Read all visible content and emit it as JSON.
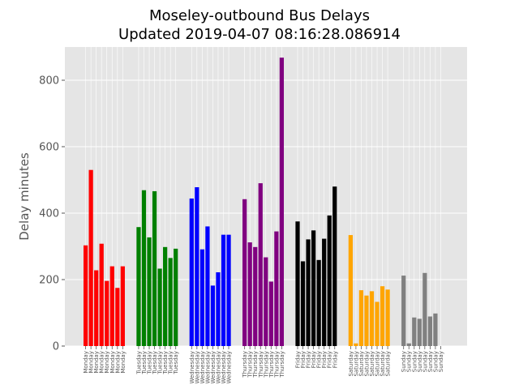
{
  "chart_data": {
    "type": "bar",
    "title_lines": [
      "Moseley-outbound Bus Delays",
      "Updated 2019-04-07 08:16:28.086914"
    ],
    "xlabel": "",
    "ylabel": "Delay minutes",
    "ylim": [
      0,
      900
    ],
    "yticks": [
      0,
      200,
      400,
      600,
      800
    ],
    "grid": true,
    "legend": "none",
    "background": "#e5e5e5",
    "groups": [
      {
        "day": "Monday",
        "color": "#ff0000",
        "values": [
          303,
          530,
          228,
          308,
          196,
          240,
          175,
          240
        ],
        "slots": 10
      },
      {
        "day": "Tuesday",
        "color": "#008000",
        "values": [
          358,
          469,
          327,
          466,
          233,
          298,
          265,
          293
        ],
        "slots": 10
      },
      {
        "day": "Wednesday",
        "color": "#0000ff",
        "values": [
          444,
          478,
          291,
          360,
          182,
          222,
          335,
          335
        ],
        "slots": 10
      },
      {
        "day": "Thursday",
        "color": "#800080",
        "values": [
          442,
          312,
          298,
          490,
          267,
          194,
          345,
          868
        ],
        "slots": 10
      },
      {
        "day": "Friday",
        "color": "#000000",
        "values": [
          375,
          255,
          321,
          348,
          259,
          323,
          393,
          480
        ],
        "slots": 10
      },
      {
        "day": "Saturday",
        "color": "#ffa500",
        "values": [
          334,
          8,
          168,
          152,
          165,
          133,
          180,
          170
        ],
        "slots": 10
      },
      {
        "day": "Sunday",
        "color": "#808080",
        "values": [
          212,
          8,
          86,
          82,
          220,
          89,
          98,
          0
        ],
        "slots": 10
      }
    ]
  }
}
